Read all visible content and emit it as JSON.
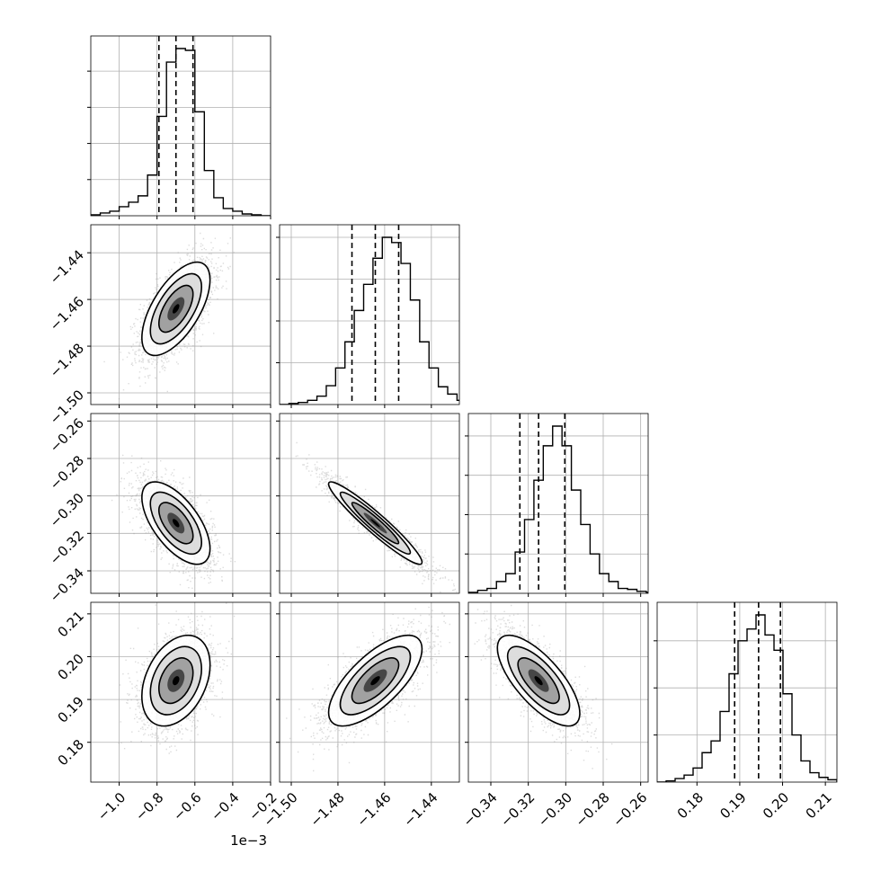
{
  "chart_data": {
    "type": "corner",
    "grid": true,
    "params": [
      {
        "range": [
          -1.15,
          -0.2
        ],
        "ticks": [
          -1.0,
          -0.8,
          -0.6,
          -0.4,
          -0.2
        ],
        "tick_labels": [
          "−1.0",
          "−0.8",
          "−0.6",
          "−0.4",
          "−0.2"
        ],
        "offset_label": "1e−3"
      },
      {
        "range": [
          -1.505,
          -1.428
        ],
        "ticks": [
          -1.5,
          -1.48,
          -1.46,
          -1.44
        ],
        "tick_labels": [
          "−1.50",
          "−1.48",
          "−1.46",
          "−1.44"
        ]
      },
      {
        "range": [
          -0.352,
          -0.256
        ],
        "ticks": [
          -0.34,
          -0.32,
          -0.3,
          -0.28,
          -0.26
        ],
        "tick_labels": [
          "−0.34",
          "−0.32",
          "−0.30",
          "−0.28",
          "−0.26"
        ]
      },
      {
        "range": [
          0.1707,
          0.2127
        ],
        "ticks": [
          0.18,
          0.19,
          0.2,
          0.21
        ],
        "tick_labels": [
          "0.18",
          "0.19",
          "0.20",
          "0.21"
        ]
      }
    ],
    "quantiles": [
      [
        -0.79,
        -0.7,
        -0.61
      ],
      [
        -1.474,
        -1.464,
        -1.454
      ],
      [
        -0.3245,
        -0.3145,
        -0.3005
      ],
      [
        0.1888,
        0.1944,
        0.1995
      ]
    ],
    "histograms": [
      {
        "edges_start": -1.15,
        "bin_width": 0.05,
        "counts": [
          1,
          3,
          5,
          10,
          15,
          22,
          45,
          110,
          170,
          185,
          183,
          115,
          50,
          20,
          8,
          5,
          2,
          1,
          0
        ]
      },
      {
        "edges_start": -1.505,
        "bin_width": 0.004,
        "counts": [
          0,
          1,
          2,
          4,
          8,
          18,
          35,
          60,
          90,
          115,
          140,
          160,
          155,
          135,
          100,
          60,
          35,
          17,
          10,
          4
        ]
      },
      {
        "edges_start": -0.352,
        "bin_width": 0.005,
        "counts": [
          1,
          3,
          5,
          12,
          20,
          42,
          75,
          115,
          150,
          170,
          150,
          105,
          70,
          40,
          20,
          12,
          5,
          4,
          2,
          1
        ]
      },
      {
        "edges_start": 0.1707,
        "bin_width": 0.0021,
        "counts": [
          0,
          1,
          3,
          6,
          12,
          25,
          35,
          60,
          92,
          120,
          130,
          142,
          125,
          112,
          75,
          40,
          18,
          8,
          4,
          2
        ]
      }
    ],
    "pairs": [
      {
        "x": 0,
        "y": 1,
        "mean": [
          -0.7,
          -1.464
        ],
        "sd": [
          0.09,
          0.01
        ],
        "rho": 0.62
      },
      {
        "x": 0,
        "y": 2,
        "mean": [
          -0.7,
          -0.3145
        ],
        "sd": [
          0.09,
          0.011
        ],
        "rho": -0.62
      },
      {
        "x": 1,
        "y": 2,
        "mean": [
          -1.464,
          -0.3145
        ],
        "sd": [
          0.01,
          0.011
        ],
        "rho": -0.95
      },
      {
        "x": 0,
        "y": 3,
        "mean": [
          -0.7,
          0.1944
        ],
        "sd": [
          0.09,
          0.0053
        ],
        "rho": 0.35
      },
      {
        "x": 1,
        "y": 3,
        "mean": [
          -1.464,
          0.1944
        ],
        "sd": [
          0.01,
          0.0053
        ],
        "rho": 0.7
      },
      {
        "x": 2,
        "y": 3,
        "mean": [
          -0.3145,
          0.1944
        ],
        "sd": [
          0.011,
          0.0053
        ],
        "rho": -0.72
      }
    ],
    "contour_sigma_levels": [
      0.5,
      1.0,
      1.5,
      2.0
    ]
  }
}
